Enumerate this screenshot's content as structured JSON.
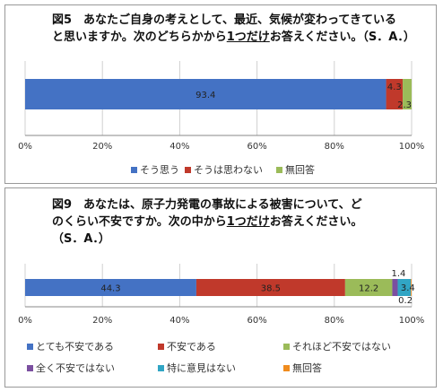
{
  "chart_data": [
    {
      "type": "bar",
      "orientation": "horizontal",
      "stacked": true,
      "title_line1": "図5　あなたご自身の考えとして、最近、気候が変わってきている",
      "title_line2_a": "と思いますか。次のどちらかから",
      "title_line2_u": "1つだけ",
      "title_line2_b": "お答えください。（S．A．）",
      "xlim": [
        0,
        100
      ],
      "xticks": [
        "0%",
        "20%",
        "40%",
        "60%",
        "80%",
        "100%"
      ],
      "grid": true,
      "legend_position": "bottom",
      "series": [
        {
          "name": "そう思う",
          "value": 93.4,
          "color": "#4472C4",
          "label": "93.4"
        },
        {
          "name": "そうは思わない",
          "value": 4.3,
          "color": "#C0392B",
          "label": "4.3"
        },
        {
          "name": "無回答",
          "value": 2.3,
          "color": "#9BBB59",
          "label": "2.3"
        }
      ]
    },
    {
      "type": "bar",
      "orientation": "horizontal",
      "stacked": true,
      "title_line1": "図9　あなたは、原子力発電の事故による被害について、ど",
      "title_line2_a": "のくらい不安ですか。次の中から",
      "title_line2_u": "1つだけ",
      "title_line2_b": "お答えください。",
      "title_line3": "（S．A．）",
      "xlim": [
        0,
        100
      ],
      "xticks": [
        "0%",
        "20%",
        "40%",
        "60%",
        "80%",
        "100%"
      ],
      "grid": true,
      "legend_position": "bottom",
      "series": [
        {
          "name": "とても不安である",
          "value": 44.3,
          "color": "#4472C4",
          "label": "44.3"
        },
        {
          "name": "不安である",
          "value": 38.5,
          "color": "#C0392B",
          "label": "38.5"
        },
        {
          "name": "それほど不安ではない",
          "value": 12.2,
          "color": "#9BBB59",
          "label": "12.2"
        },
        {
          "name": "全く不安ではない",
          "value": 1.4,
          "color": "#7B4FA0",
          "label": "1.4"
        },
        {
          "name": "特に意見はない",
          "value": 3.4,
          "color": "#31A5C4",
          "label": "3.4"
        },
        {
          "name": "無回答",
          "value": 0.2,
          "color": "#F08C1E",
          "label": "0.2"
        }
      ]
    }
  ]
}
